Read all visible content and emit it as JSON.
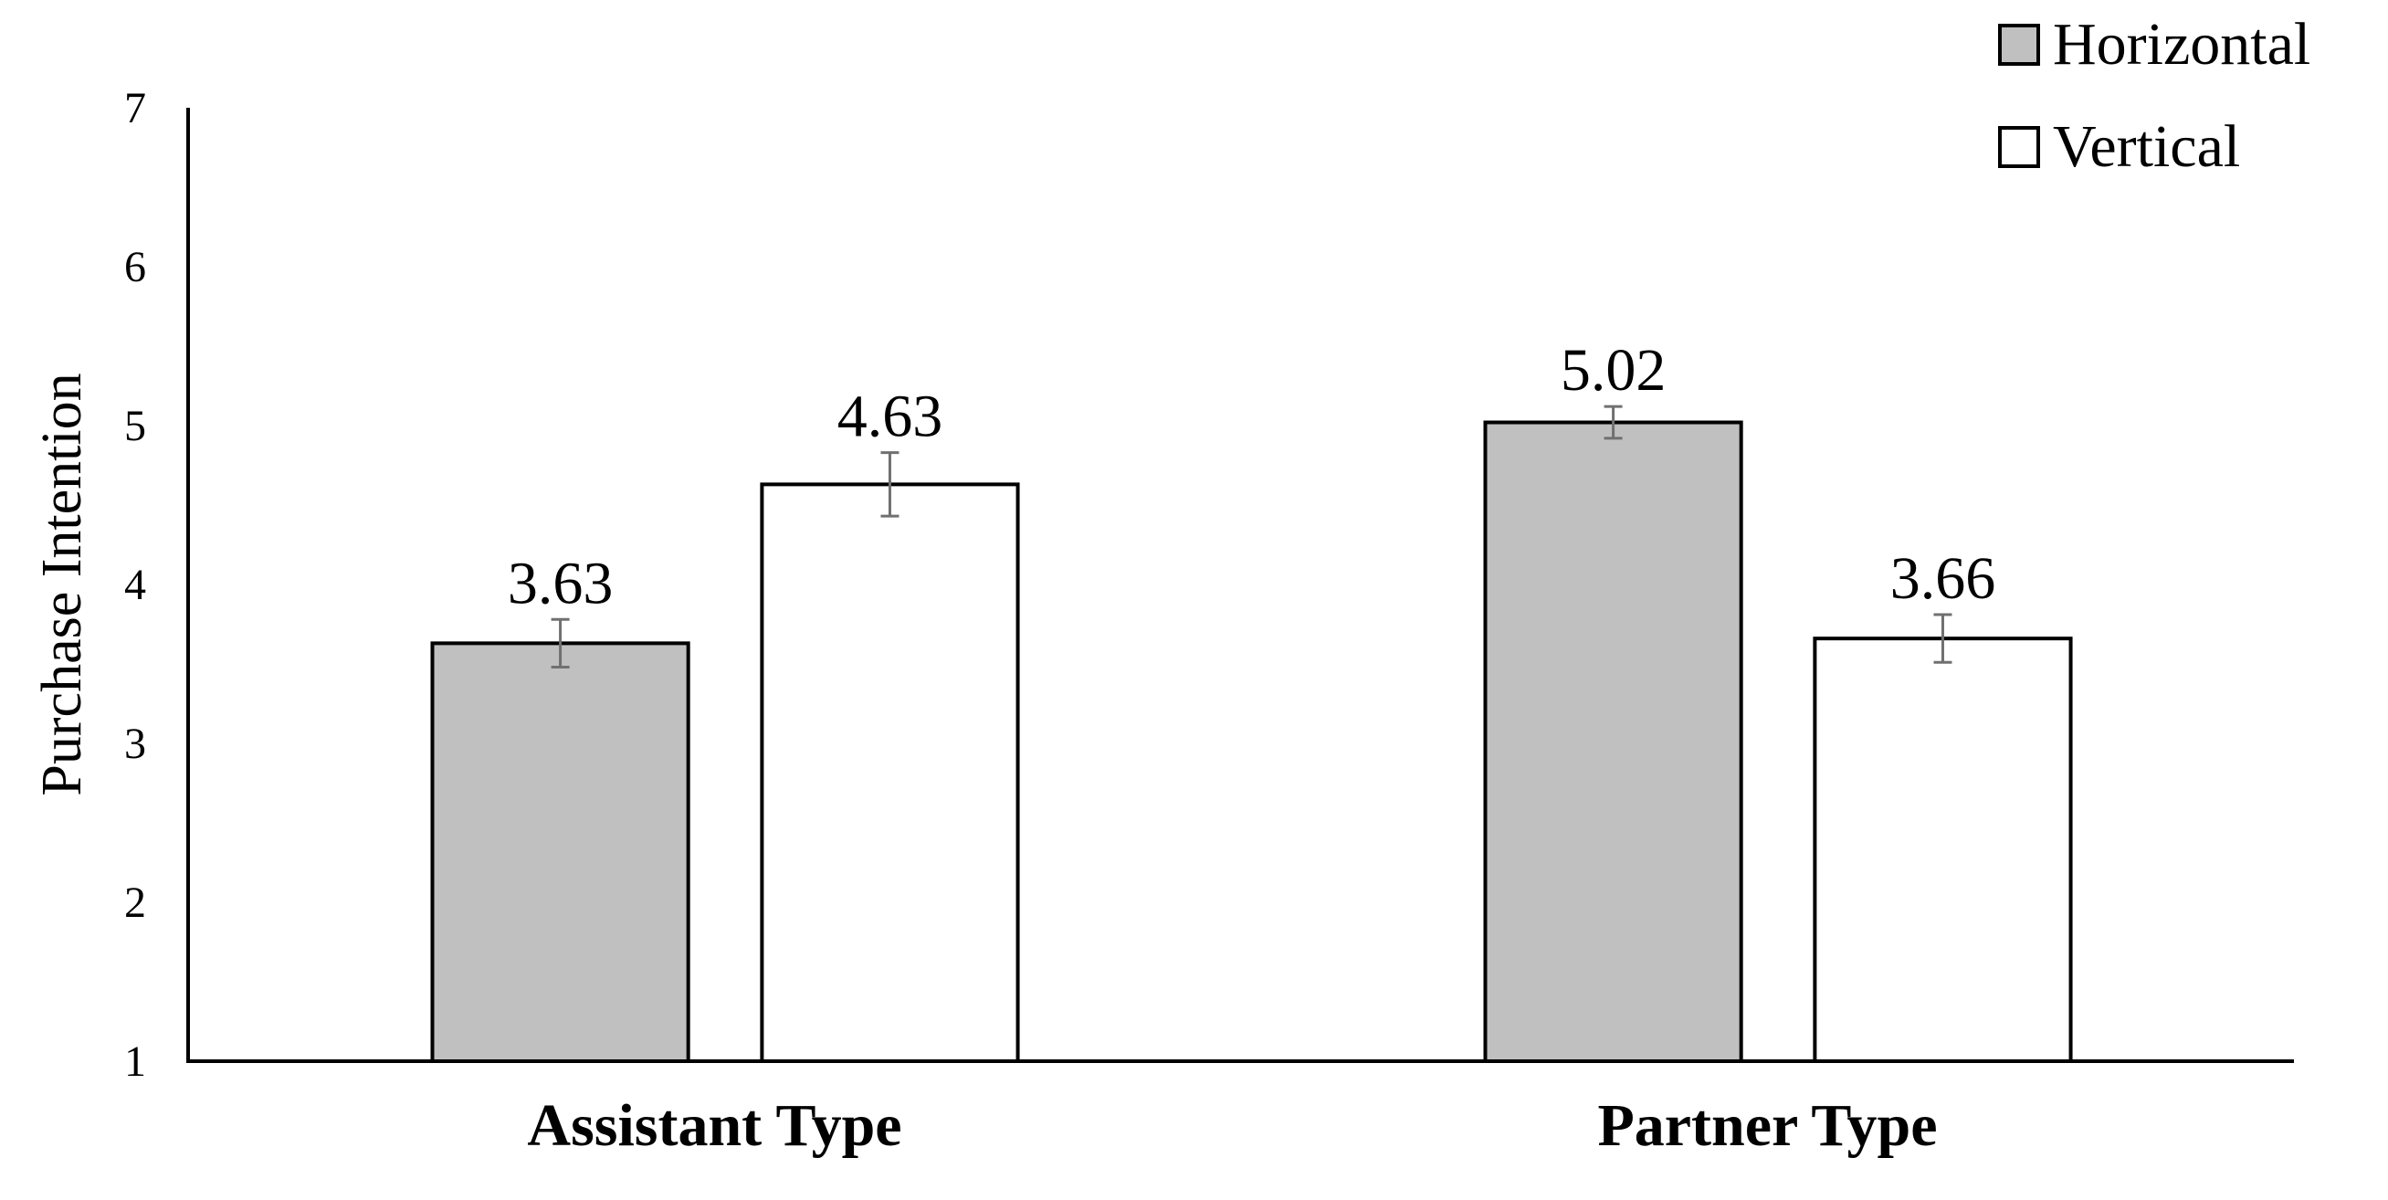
{
  "chart_data": {
    "type": "bar",
    "title": "",
    "xlabel": "",
    "ylabel": "Purchase Intention",
    "ylim": [
      1,
      7
    ],
    "yticks": [
      1,
      2,
      3,
      4,
      5,
      6,
      7
    ],
    "grid": false,
    "legend_position": "top-right",
    "categories": [
      "Assistant Type",
      "Partner Type"
    ],
    "series": [
      {
        "name": "Horizontal",
        "color": "#c0c0c0",
        "values": [
          3.63,
          5.02
        ],
        "labels": [
          "3.63",
          "5.02"
        ],
        "error": [
          0.15,
          0.1
        ]
      },
      {
        "name": "Vertical",
        "color": "#ffffff",
        "values": [
          4.63,
          3.66
        ],
        "labels": [
          "4.63",
          "3.66"
        ],
        "error": [
          0.2,
          0.15
        ]
      }
    ]
  }
}
